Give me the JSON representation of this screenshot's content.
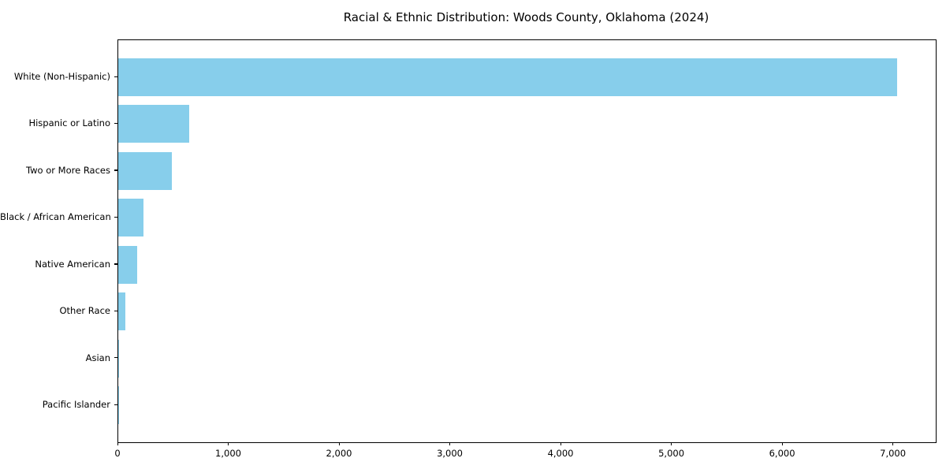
{
  "chart_data": {
    "type": "bar",
    "orientation": "horizontal",
    "title": "Racial & Ethnic Distribution: Woods County, Oklahoma (2024)",
    "categories": [
      "White (Non-Hispanic)",
      "Hispanic or Latino",
      "Two or More Races",
      "Black / African American",
      "Native American",
      "Other Race",
      "Asian",
      "Pacific Islander"
    ],
    "values": [
      7030,
      640,
      485,
      230,
      170,
      65,
      10,
      3
    ],
    "xlabel": "",
    "ylabel": "",
    "xlim": [
      0,
      7380
    ],
    "xticks": [
      0,
      1000,
      2000,
      3000,
      4000,
      5000,
      6000,
      7000
    ],
    "xtick_labels": [
      "0",
      "1,000",
      "2,000",
      "3,000",
      "4,000",
      "5,000",
      "6,000",
      "7,000"
    ],
    "bar_color": "#87CEEB",
    "grid": false,
    "legend": null,
    "background_color": "#ffffff",
    "text_color": "#000000"
  }
}
